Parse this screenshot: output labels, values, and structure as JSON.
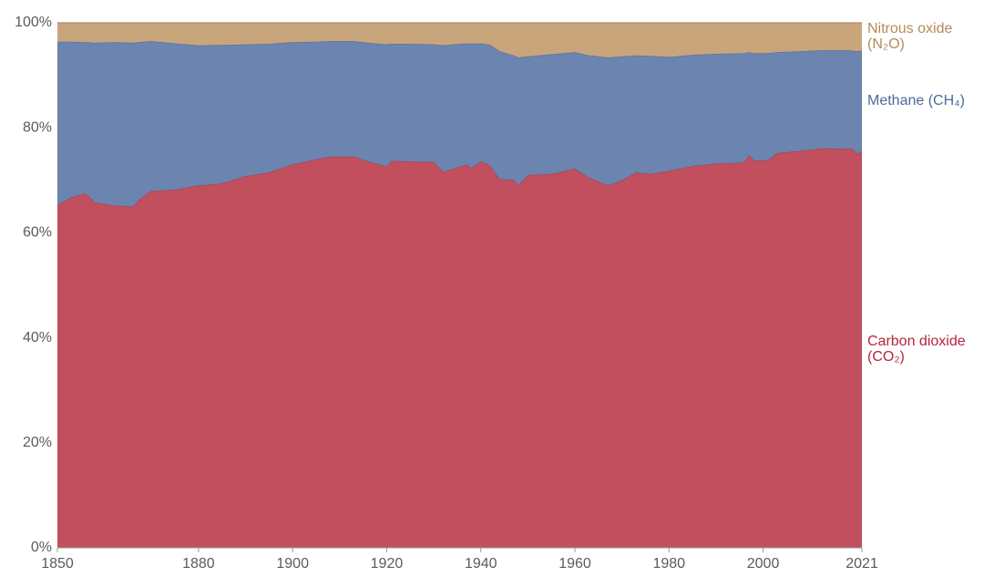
{
  "chart_data": {
    "type": "stacked_area",
    "x": [
      1850,
      1853,
      1856,
      1858,
      1862,
      1866,
      1868,
      1870,
      1875,
      1880,
      1885,
      1890,
      1895,
      1900,
      1905,
      1908,
      1913,
      1916,
      1920,
      1921,
      1925,
      1930,
      1932,
      1937,
      1938,
      1940,
      1942,
      1944,
      1947,
      1948,
      1950,
      1955,
      1960,
      1963,
      1967,
      1970,
      1973,
      1976,
      1980,
      1985,
      1990,
      1996,
      1997,
      1998,
      2001,
      2003,
      2008,
      2013,
      2017,
      2019,
      2020,
      2021
    ],
    "series": [
      {
        "name": "Carbon dioxide (CO₂)",
        "color": "#c24f5e",
        "label_color": "#b8233a",
        "values": [
          65.3,
          66.8,
          67.5,
          65.8,
          65.2,
          65.0,
          66.8,
          68.0,
          68.2,
          69.0,
          69.4,
          70.8,
          71.5,
          73.0,
          74.0,
          74.5,
          74.5,
          73.6,
          72.6,
          73.7,
          73.6,
          73.5,
          71.6,
          73.0,
          72.3,
          73.6,
          72.8,
          70.2,
          70.1,
          69.0,
          71.0,
          71.2,
          72.2,
          70.5,
          69.0,
          70.0,
          71.5,
          71.2,
          71.8,
          72.7,
          73.2,
          73.4,
          74.8,
          73.8,
          73.8,
          75.2,
          75.6,
          76.1,
          76.0,
          76.0,
          75.0,
          75.6
        ]
      },
      {
        "name": "Methane (CH₄)",
        "color": "#6b84b0",
        "label_color": "#4c6a9c",
        "values": [
          31.1,
          29.6,
          28.8,
          30.4,
          31.1,
          31.2,
          29.6,
          28.5,
          27.9,
          26.7,
          26.4,
          25.1,
          24.5,
          23.3,
          22.4,
          22.0,
          22.0,
          22.6,
          23.3,
          22.3,
          22.4,
          22.4,
          24.1,
          23.1,
          23.7,
          22.5,
          23.0,
          24.4,
          23.7,
          24.4,
          22.6,
          22.8,
          22.2,
          23.3,
          24.4,
          23.6,
          22.3,
          22.5,
          21.7,
          21.2,
          20.9,
          20.8,
          19.6,
          20.4,
          20.4,
          19.2,
          19.0,
          18.7,
          18.8,
          18.7,
          19.6,
          19.1
        ]
      },
      {
        "name": "Nitrous oxide (N₂O)",
        "color": "#c9a57c",
        "label_color": "#b58a53",
        "values": [
          3.6,
          3.6,
          3.7,
          3.8,
          3.7,
          3.8,
          3.6,
          3.5,
          3.9,
          4.3,
          4.2,
          4.1,
          4.0,
          3.7,
          3.6,
          3.5,
          3.5,
          3.8,
          4.1,
          4.0,
          4.0,
          4.1,
          4.3,
          3.9,
          4.0,
          3.9,
          4.2,
          5.4,
          6.2,
          6.6,
          6.4,
          6.0,
          5.6,
          6.2,
          6.6,
          6.4,
          6.2,
          6.3,
          6.5,
          6.1,
          5.9,
          5.8,
          5.6,
          5.8,
          5.8,
          5.6,
          5.4,
          5.2,
          5.2,
          5.3,
          5.4,
          5.3
        ]
      }
    ],
    "xlim": [
      1850,
      2021
    ],
    "xticks": [
      1850,
      1880,
      1900,
      1920,
      1940,
      1960,
      1980,
      2000,
      2021
    ],
    "ylim": [
      0,
      100
    ],
    "yticks": [
      {
        "value": 0,
        "label": "0%"
      },
      {
        "value": 20,
        "label": "20%"
      },
      {
        "value": 40,
        "label": "40%"
      },
      {
        "value": 60,
        "label": "60%"
      },
      {
        "value": 80,
        "label": "80%"
      },
      {
        "value": 100,
        "label": "100%"
      }
    ],
    "grid": true
  }
}
